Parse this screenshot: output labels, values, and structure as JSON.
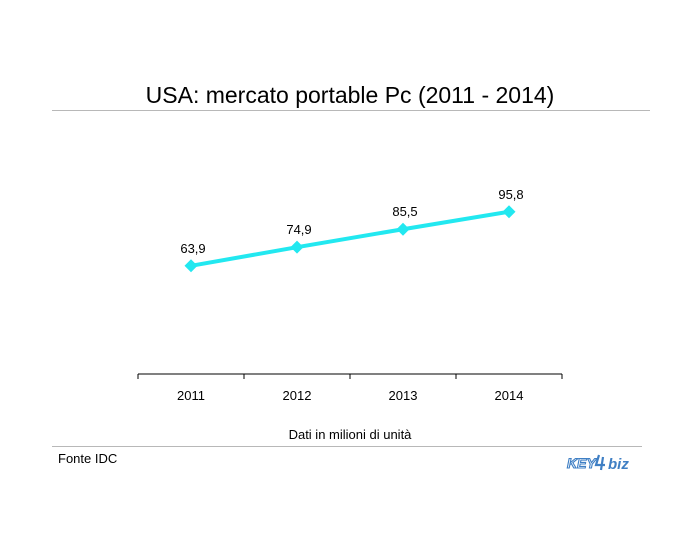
{
  "chart_data": {
    "type": "line",
    "title": "USA: mercato portable Pc (2011 - 2014)",
    "categories": [
      "2011",
      "2012",
      "2013",
      "2014"
    ],
    "series": [
      {
        "values": [
          63.9,
          74.9,
          85.5,
          95.8
        ],
        "labels": [
          "63,9",
          "74,9",
          "85,5",
          "95,8"
        ],
        "color": "#22e8f0"
      }
    ],
    "xlabel": "Dati in milioni di unità",
    "ylim": [
      0,
      150
    ],
    "grid": false,
    "legend": "none"
  },
  "footer": {
    "source": "Fonte IDC",
    "logo_text": "KEY4biz"
  },
  "colors": {
    "line": "#22e8f0",
    "logo_blue": "#3f7fc4"
  }
}
